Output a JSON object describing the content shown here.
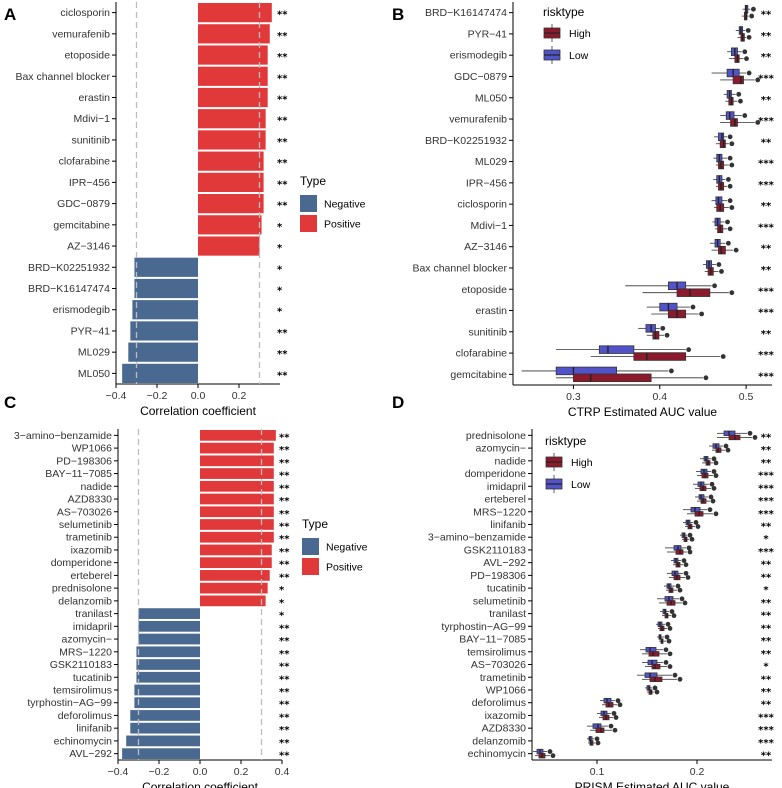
{
  "colors": {
    "negative": "#4a6990",
    "positive": "#e1393a",
    "high": "#8b1a2c",
    "low": "#5353c9",
    "dashed": "#bdbdbd",
    "point": "#333333"
  },
  "chart_data": [
    {
      "panel": "A",
      "type": "bar",
      "orientation": "horizontal",
      "xlabel": "Correlation coefficient",
      "xlim": [
        -0.4,
        0.4
      ],
      "xticks": [
        -0.4,
        -0.2,
        0.0,
        0.2
      ],
      "tick_labels": [
        "−0.4",
        "−0.2",
        "0.0",
        "0.2"
      ],
      "reference_lines": [
        -0.3,
        0.3
      ],
      "legend": {
        "title": "Type",
        "items": [
          {
            "label": "Negative",
            "key": "negative"
          },
          {
            "label": "Positive",
            "key": "positive"
          }
        ],
        "placement": "right"
      },
      "categories": [
        "ciclosporin",
        "vemurafenib",
        "etoposide",
        "Bax channel blocker",
        "erastin",
        "Mdivi−1",
        "sunitinib",
        "clofarabine",
        "IPR−456",
        "GDC−0879",
        "gemcitabine",
        "AZ−3146",
        "BRD−K02251932",
        "BRD−K16147474",
        "erismodegib",
        "PYR−41",
        "ML029",
        "ML050"
      ],
      "values": [
        0.36,
        0.35,
        0.34,
        0.34,
        0.34,
        0.33,
        0.33,
        0.32,
        0.32,
        0.32,
        0.31,
        0.3,
        -0.31,
        -0.31,
        -0.32,
        -0.33,
        -0.34,
        -0.37
      ],
      "types": [
        "positive",
        "positive",
        "positive",
        "positive",
        "positive",
        "positive",
        "positive",
        "positive",
        "positive",
        "positive",
        "positive",
        "positive",
        "negative",
        "negative",
        "negative",
        "negative",
        "negative",
        "negative"
      ],
      "significance": [
        "**",
        "**",
        "**",
        "**",
        "**",
        "**",
        "**",
        "**",
        "**",
        "**",
        "*",
        "*",
        "*",
        "*",
        "*",
        "**",
        "**",
        "**"
      ]
    },
    {
      "panel": "B",
      "type": "boxplot",
      "orientation": "horizontal",
      "xlabel": "CTRP Estimated AUC value",
      "xlim": [
        0.23,
        0.53
      ],
      "xticks": [
        0.3,
        0.4,
        0.5
      ],
      "tick_labels": [
        "0.3",
        "0.4",
        "0.5"
      ],
      "legend": {
        "title": "risktype",
        "items": [
          {
            "label": "High",
            "key": "high"
          },
          {
            "label": "Low",
            "key": "low"
          }
        ],
        "placement": "top-left"
      },
      "categories": [
        "BRD−K16147474",
        "PYR−41",
        "erismodegib",
        "GDC−0879",
        "ML050",
        "vemurafenib",
        "BRD−K02251932",
        "ML029",
        "IPR−456",
        "ciclosporin",
        "Mdivi−1",
        "AZ−3146",
        "Bax channel blocker",
        "etoposide",
        "erastin",
        "sunitinib",
        "clofarabine",
        "gemcitabine"
      ],
      "significance": [
        "**",
        "**",
        "**",
        "***",
        "**",
        "***",
        "**",
        "***",
        "***",
        "**",
        "***",
        "**",
        "**",
        "***",
        "***",
        "**",
        "***",
        "***"
      ],
      "high": [
        [
          0.495,
          0.498,
          0.5,
          0.501,
          0.503
        ],
        [
          0.49,
          0.494,
          0.496,
          0.498,
          0.5
        ],
        [
          0.48,
          0.487,
          0.49,
          0.492,
          0.497
        ],
        [
          0.47,
          0.485,
          0.494,
          0.497,
          0.51
        ],
        [
          0.476,
          0.48,
          0.483,
          0.485,
          0.49
        ],
        [
          0.47,
          0.482,
          0.487,
          0.49,
          0.51
        ],
        [
          0.465,
          0.47,
          0.474,
          0.476,
          0.48
        ],
        [
          0.465,
          0.468,
          0.471,
          0.474,
          0.48
        ],
        [
          0.465,
          0.468,
          0.471,
          0.474,
          0.478
        ],
        [
          0.463,
          0.466,
          0.47,
          0.474,
          0.48
        ],
        [
          0.464,
          0.467,
          0.47,
          0.473,
          0.478
        ],
        [
          0.46,
          0.468,
          0.471,
          0.476,
          0.485
        ],
        [
          0.452,
          0.456,
          0.459,
          0.462,
          0.468
        ],
        [
          0.38,
          0.42,
          0.435,
          0.458,
          0.48
        ],
        [
          0.39,
          0.41,
          0.42,
          0.43,
          0.445
        ],
        [
          0.385,
          0.392,
          0.395,
          0.399,
          0.405
        ],
        [
          0.32,
          0.37,
          0.385,
          0.43,
          0.47
        ],
        [
          0.28,
          0.3,
          0.32,
          0.39,
          0.45
        ]
      ],
      "low": [
        [
          0.496,
          0.499,
          0.5,
          0.502,
          0.505
        ],
        [
          0.488,
          0.492,
          0.494,
          0.496,
          0.499
        ],
        [
          0.478,
          0.483,
          0.487,
          0.49,
          0.495
        ],
        [
          0.46,
          0.478,
          0.485,
          0.492,
          0.5
        ],
        [
          0.474,
          0.478,
          0.481,
          0.483,
          0.488
        ],
        [
          0.47,
          0.477,
          0.481,
          0.486,
          0.495
        ],
        [
          0.463,
          0.468,
          0.472,
          0.474,
          0.478
        ],
        [
          0.462,
          0.466,
          0.469,
          0.472,
          0.478
        ],
        [
          0.462,
          0.466,
          0.469,
          0.472,
          0.476
        ],
        [
          0.46,
          0.465,
          0.468,
          0.472,
          0.478
        ],
        [
          0.461,
          0.464,
          0.467,
          0.47,
          0.475
        ],
        [
          0.458,
          0.464,
          0.467,
          0.47,
          0.476
        ],
        [
          0.45,
          0.454,
          0.457,
          0.46,
          0.465
        ],
        [
          0.36,
          0.41,
          0.42,
          0.43,
          0.46
        ],
        [
          0.385,
          0.4,
          0.41,
          0.42,
          0.435
        ],
        [
          0.375,
          0.384,
          0.39,
          0.395,
          0.4
        ],
        [
          0.28,
          0.33,
          0.34,
          0.37,
          0.43
        ],
        [
          0.24,
          0.28,
          0.3,
          0.35,
          0.41
        ]
      ]
    },
    {
      "panel": "C",
      "type": "bar",
      "orientation": "horizontal",
      "xlabel": "Correlation coefficient",
      "xlim": [
        -0.4,
        0.4
      ],
      "xticks": [
        -0.4,
        -0.2,
        0.0,
        0.2,
        0.4
      ],
      "tick_labels": [
        "−0.4",
        "−0.2",
        "0.0",
        "0.2",
        "0.4"
      ],
      "reference_lines": [
        -0.3,
        0.3
      ],
      "legend": {
        "title": "Type",
        "items": [
          {
            "label": "Negative",
            "key": "negative"
          },
          {
            "label": "Positive",
            "key": "positive"
          }
        ],
        "placement": "right"
      },
      "categories": [
        "3−amino−benzamide",
        "WP1066",
        "PD−198306",
        "BAY−11−7085",
        "nadide",
        "AZD8330",
        "AS−703026",
        "selumetinib",
        "trametinib",
        "ixazomib",
        "domperidone",
        "erteberel",
        "prednisolone",
        "delanzomib",
        "tranilast",
        "imidapril",
        "azomycin−",
        "MRS−1220",
        "GSK2110183",
        "tucatinib",
        "temsirolimus",
        "tyrphostin−AG−99",
        "deforolimus",
        "linifanib",
        "echinomycin",
        "AVL−292"
      ],
      "values": [
        0.37,
        0.36,
        0.36,
        0.36,
        0.36,
        0.36,
        0.36,
        0.36,
        0.36,
        0.35,
        0.35,
        0.34,
        0.33,
        0.32,
        -0.3,
        -0.3,
        -0.3,
        -0.31,
        -0.31,
        -0.31,
        -0.32,
        -0.32,
        -0.34,
        -0.34,
        -0.36,
        -0.38
      ],
      "types": [
        "positive",
        "positive",
        "positive",
        "positive",
        "positive",
        "positive",
        "positive",
        "positive",
        "positive",
        "positive",
        "positive",
        "positive",
        "positive",
        "positive",
        "negative",
        "negative",
        "negative",
        "negative",
        "negative",
        "negative",
        "negative",
        "negative",
        "negative",
        "negative",
        "negative",
        "negative"
      ],
      "significance": [
        "**",
        "**",
        "**",
        "**",
        "**",
        "**",
        "**",
        "**",
        "**",
        "**",
        "**",
        "**",
        "*",
        "*",
        "*",
        "**",
        "**",
        "**",
        "**",
        "**",
        "**",
        "**",
        "**",
        "**",
        "**",
        "**"
      ]
    },
    {
      "panel": "D",
      "type": "boxplot",
      "orientation": "horizontal",
      "xlabel": "PRISM Estimated AUC value",
      "xlim": [
        0.035,
        0.275
      ],
      "xticks": [
        0.1,
        0.2
      ],
      "tick_labels": [
        "0.1",
        "0.2"
      ],
      "legend": {
        "title": "risktype",
        "items": [
          {
            "label": "High",
            "key": "high"
          },
          {
            "label": "Low",
            "key": "low"
          }
        ],
        "placement": "top-left"
      },
      "categories": [
        "prednisolone",
        "azomycin−",
        "nadide",
        "domperidone",
        "imidapril",
        "erteberel",
        "MRS−1220",
        "linifanib",
        "3−amino−benzamide",
        "GSK2110183",
        "AVL−292",
        "PD−198306",
        "tucatinib",
        "selumetinib",
        "tranilast",
        "tyrphostin−AG−99",
        "BAY−11−7085",
        "temsirolimus",
        "AS−703026",
        "trametinib",
        "WP1066",
        "deforolimus",
        "ixazomib",
        "AZD8330",
        "delanzomib",
        "echinomycin"
      ],
      "significance": [
        "**",
        "**",
        "**",
        "***",
        "***",
        "***",
        "***",
        "**",
        "*",
        "***",
        "**",
        "**",
        "*",
        "**",
        "**",
        "**",
        "**",
        "**",
        "*",
        "**",
        "**",
        "**",
        "***",
        "***",
        "***",
        "**"
      ],
      "high": [
        [
          0.22,
          0.232,
          0.238,
          0.243,
          0.255
        ],
        [
          0.215,
          0.219,
          0.221,
          0.224,
          0.228
        ],
        [
          0.205,
          0.209,
          0.211,
          0.213,
          0.216
        ],
        [
          0.2,
          0.205,
          0.208,
          0.211,
          0.216
        ],
        [
          0.198,
          0.203,
          0.206,
          0.209,
          0.214
        ],
        [
          0.2,
          0.204,
          0.206,
          0.209,
          0.213
        ],
        [
          0.19,
          0.198,
          0.202,
          0.206,
          0.216
        ],
        [
          0.188,
          0.191,
          0.193,
          0.195,
          0.198
        ],
        [
          0.185,
          0.187,
          0.189,
          0.19,
          0.192
        ],
        [
          0.17,
          0.179,
          0.183,
          0.186,
          0.19
        ],
        [
          0.176,
          0.179,
          0.181,
          0.183,
          0.186
        ],
        [
          0.172,
          0.177,
          0.18,
          0.183,
          0.188
        ],
        [
          0.169,
          0.172,
          0.174,
          0.176,
          0.18
        ],
        [
          0.162,
          0.17,
          0.174,
          0.178,
          0.185
        ],
        [
          0.165,
          0.168,
          0.17,
          0.171,
          0.174
        ],
        [
          0.161,
          0.163,
          0.165,
          0.167,
          0.17
        ],
        [
          0.162,
          0.164,
          0.165,
          0.166,
          0.169
        ],
        [
          0.145,
          0.152,
          0.156,
          0.162,
          0.17
        ],
        [
          0.148,
          0.155,
          0.158,
          0.163,
          0.17
        ],
        [
          0.145,
          0.153,
          0.158,
          0.165,
          0.18
        ],
        [
          0.15,
          0.152,
          0.154,
          0.155,
          0.157
        ],
        [
          0.105,
          0.109,
          0.112,
          0.116,
          0.12
        ],
        [
          0.102,
          0.106,
          0.109,
          0.112,
          0.116
        ],
        [
          0.093,
          0.099,
          0.104,
          0.107,
          0.115
        ],
        [
          0.091,
          0.093,
          0.094,
          0.096,
          0.098
        ],
        [
          0.038,
          0.042,
          0.045,
          0.048,
          0.053
        ]
      ],
      "low": [
        [
          0.22,
          0.227,
          0.232,
          0.238,
          0.25
        ],
        [
          0.212,
          0.216,
          0.219,
          0.222,
          0.226
        ],
        [
          0.203,
          0.207,
          0.209,
          0.211,
          0.214
        ],
        [
          0.199,
          0.204,
          0.207,
          0.21,
          0.214
        ],
        [
          0.196,
          0.201,
          0.204,
          0.207,
          0.212
        ],
        [
          0.198,
          0.202,
          0.204,
          0.207,
          0.211
        ],
        [
          0.186,
          0.194,
          0.198,
          0.203,
          0.21
        ],
        [
          0.186,
          0.189,
          0.191,
          0.193,
          0.196
        ],
        [
          0.183,
          0.185,
          0.187,
          0.188,
          0.19
        ],
        [
          0.168,
          0.177,
          0.181,
          0.184,
          0.189
        ],
        [
          0.174,
          0.177,
          0.179,
          0.181,
          0.184
        ],
        [
          0.17,
          0.175,
          0.178,
          0.181,
          0.186
        ],
        [
          0.167,
          0.17,
          0.172,
          0.174,
          0.178
        ],
        [
          0.16,
          0.168,
          0.172,
          0.176,
          0.182
        ],
        [
          0.163,
          0.166,
          0.168,
          0.169,
          0.172
        ],
        [
          0.159,
          0.161,
          0.163,
          0.165,
          0.168
        ],
        [
          0.16,
          0.162,
          0.163,
          0.164,
          0.167
        ],
        [
          0.143,
          0.149,
          0.153,
          0.159,
          0.166
        ],
        [
          0.145,
          0.151,
          0.155,
          0.16,
          0.166
        ],
        [
          0.14,
          0.148,
          0.153,
          0.16,
          0.175
        ],
        [
          0.148,
          0.15,
          0.152,
          0.153,
          0.155
        ],
        [
          0.103,
          0.107,
          0.11,
          0.114,
          0.118
        ],
        [
          0.1,
          0.104,
          0.107,
          0.11,
          0.114
        ],
        [
          0.09,
          0.096,
          0.101,
          0.104,
          0.111
        ],
        [
          0.09,
          0.092,
          0.093,
          0.095,
          0.097
        ],
        [
          0.036,
          0.04,
          0.043,
          0.046,
          0.05
        ]
      ]
    }
  ]
}
